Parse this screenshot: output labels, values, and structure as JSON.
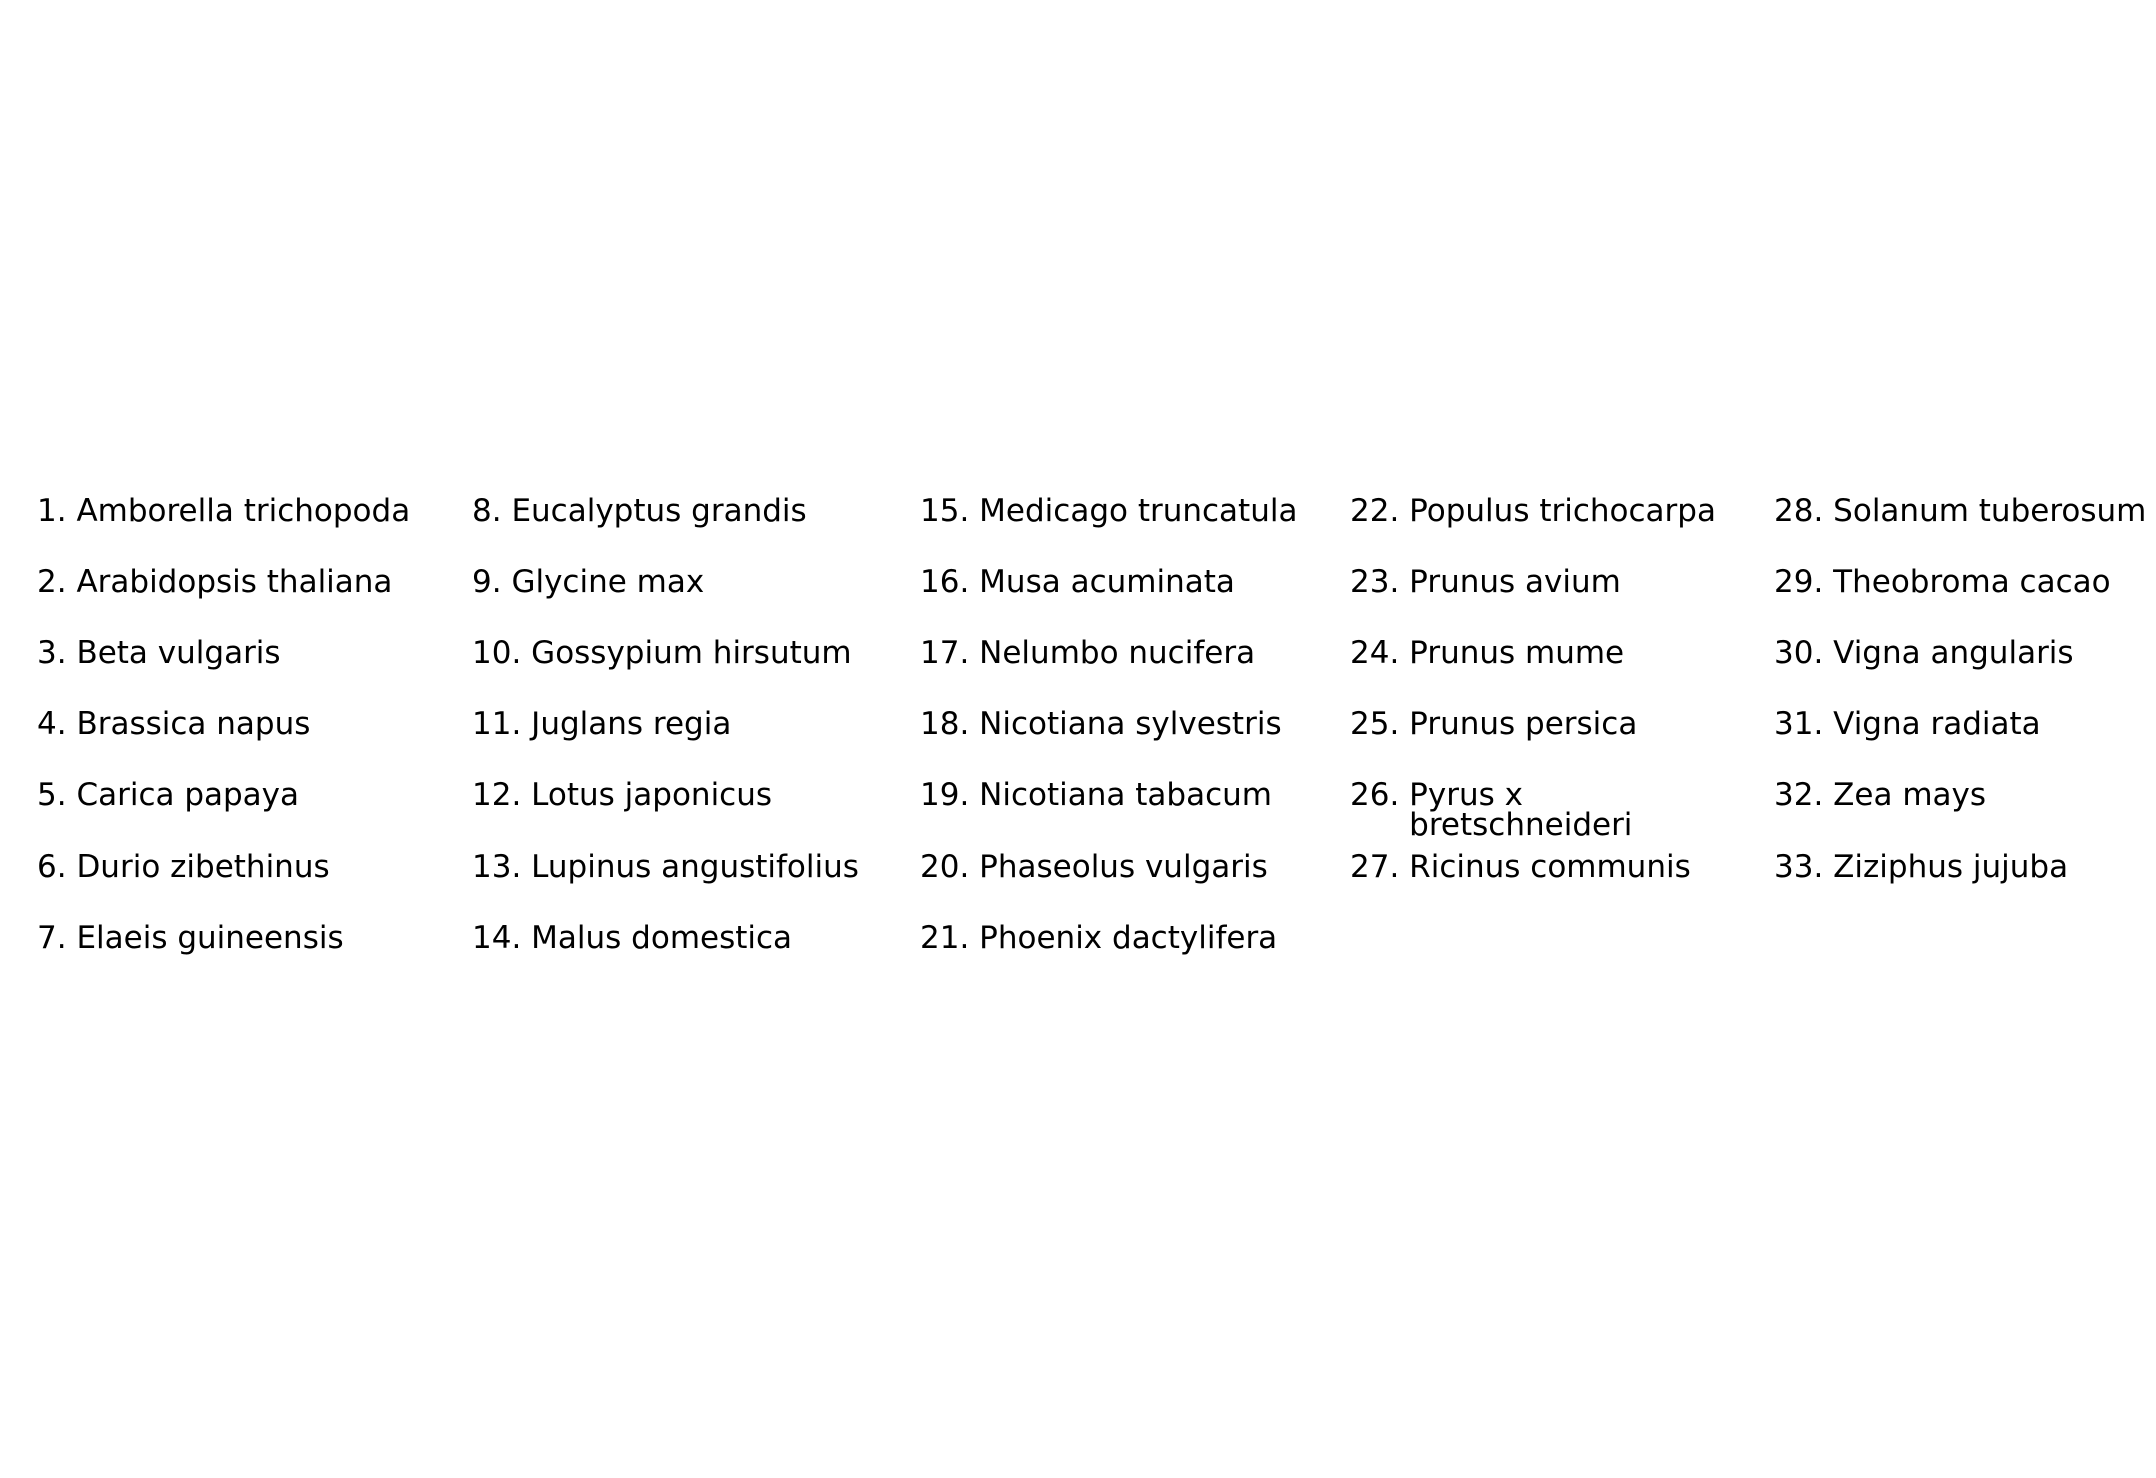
{
  "species": [
    {
      "number": "1.",
      "name": "Amborella trichopoda"
    },
    {
      "number": "2.",
      "name": "Arabidopsis thaliana"
    },
    {
      "number": "3.",
      "name": "Beta vulgaris"
    },
    {
      "number": "4.",
      "name": "Brassica napus"
    },
    {
      "number": "5.",
      "name": "Carica papaya"
    },
    {
      "number": "6.",
      "name": "Durio zibethinus"
    },
    {
      "number": "7.",
      "name": "Elaeis guineensis"
    },
    {
      "number": "8.",
      "name": "Eucalyptus grandis"
    },
    {
      "number": "9.",
      "name": "Glycine max"
    },
    {
      "number": "10.",
      "name": "Gossypium hirsutum"
    },
    {
      "number": "11.",
      "name": "Juglans regia"
    },
    {
      "number": "12.",
      "name": "Lotus japonicus"
    },
    {
      "number": "13.",
      "name": "Lupinus angustifolius"
    },
    {
      "number": "14.",
      "name": "Malus domestica"
    },
    {
      "number": "15.",
      "name": "Medicago truncatula"
    },
    {
      "number": "16.",
      "name": "Musa acuminata"
    },
    {
      "number": "17.",
      "name": "Nelumbo nucifera"
    },
    {
      "number": "18.",
      "name": "Nicotiana sylvestris"
    },
    {
      "number": "19.",
      "name": "Nicotiana tabacum"
    },
    {
      "number": "20.",
      "name": "Phaseolus vulgaris"
    },
    {
      "number": "21.",
      "name": "Phoenix dactylifera"
    },
    {
      "number": "22.",
      "name": "Populus trichocarpa"
    },
    {
      "number": "23.",
      "name": "Prunus avium"
    },
    {
      "number": "24.",
      "name": "Prunus mume"
    },
    {
      "number": "25.",
      "name": "Prunus persica"
    },
    {
      "number": "26.",
      "name": "Pyrus x bretschneideri"
    },
    {
      "number": "27.",
      "name": "Ricinus communis"
    },
    {
      "number": "28.",
      "name": "Solanum tuberosum"
    },
    {
      "number": "29.",
      "name": "Theobroma cacao"
    },
    {
      "number": "30.",
      "name": "Vigna angularis"
    },
    {
      "number": "31.",
      "name": "Vigna radiata"
    },
    {
      "number": "32.",
      "name": "Zea mays"
    },
    {
      "number": "33.",
      "name": "Ziziphus jujuba"
    }
  ]
}
